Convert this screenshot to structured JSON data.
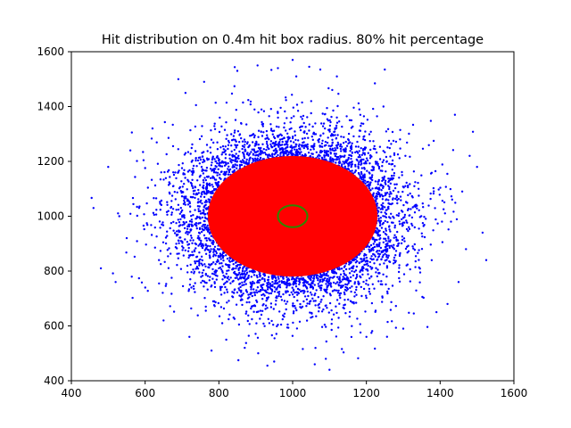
{
  "chart_data": {
    "type": "scatter",
    "title": "Hit distribution on 0.4m hit box radius. 80% hit percentage",
    "xlabel": "",
    "ylabel": "",
    "xlim": [
      400,
      1600
    ],
    "ylim": [
      400,
      1600
    ],
    "x_ticks": [
      400,
      600,
      800,
      1000,
      1200,
      1400,
      1600
    ],
    "y_ticks": [
      400,
      600,
      800,
      1000,
      1200,
      1400,
      1600
    ],
    "grid": false,
    "series": [
      {
        "kind": "scatter-cloud",
        "color": "#0000ff",
        "center": [
          1000,
          1000
        ],
        "x_range_approx": [
          450,
          1530
        ],
        "y_range_approx": [
          440,
          1570
        ],
        "outer_points": [
          [
            1000,
            1570
          ],
          [
            905,
            1550
          ],
          [
            1075,
            1535
          ],
          [
            1010,
            1510
          ],
          [
            1250,
            1535
          ],
          [
            850,
            1530
          ],
          [
            960,
            1540
          ],
          [
            1045,
            1545
          ],
          [
            1120,
            1510
          ],
          [
            760,
            1490
          ],
          [
            1440,
            1370
          ],
          [
            1500,
            1180
          ],
          [
            1515,
            940
          ],
          [
            1525,
            840
          ],
          [
            460,
            1030
          ],
          [
            480,
            810
          ],
          [
            500,
            1180
          ],
          [
            530,
            1000
          ],
          [
            520,
            760
          ],
          [
            550,
            920
          ],
          [
            1480,
            1220
          ],
          [
            1460,
            1090
          ],
          [
            1470,
            880
          ],
          [
            1450,
            760
          ],
          [
            1420,
            680
          ],
          [
            690,
            1500
          ],
          [
            620,
            1320
          ],
          [
            560,
            1240
          ],
          [
            650,
            620
          ],
          [
            720,
            560
          ],
          [
            780,
            510
          ],
          [
            1100,
            440
          ],
          [
            1090,
            480
          ],
          [
            1200,
            560
          ],
          [
            1300,
            590
          ],
          [
            1390,
            650
          ],
          [
            1060,
            460
          ],
          [
            950,
            470
          ],
          [
            870,
            520
          ],
          [
            820,
            550
          ]
        ]
      },
      {
        "kind": "filled-disk",
        "color": "#ff0000",
        "center": [
          1000,
          1000
        ],
        "x_range": [
          770,
          1230
        ],
        "y_range": [
          780,
          1220
        ]
      },
      {
        "kind": "circle-outline",
        "color": "#2a8a00",
        "center": [
          1000,
          1000
        ],
        "x_range": [
          960,
          1040
        ],
        "y_range": [
          960,
          1040
        ]
      }
    ]
  }
}
